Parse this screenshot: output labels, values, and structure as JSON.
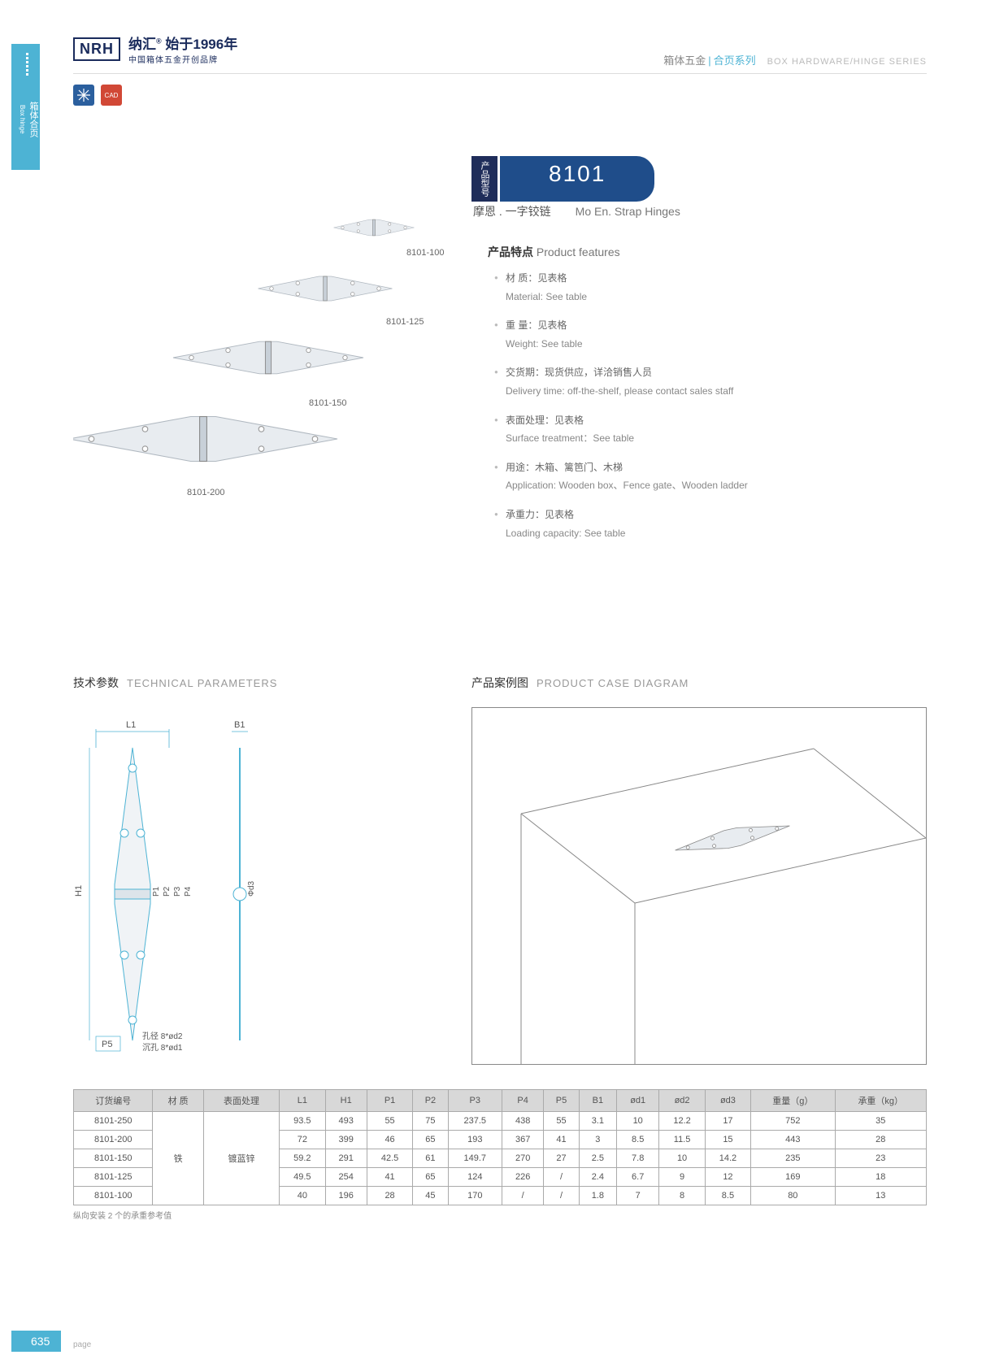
{
  "side_tab": {
    "cn": "箱体合页",
    "en": "Box hinge"
  },
  "logo": {
    "mark": "NRH",
    "cn": "纳汇",
    "reg": "®",
    "since": "始于1996年",
    "tagline": "中国箱体五金开创品牌"
  },
  "header": {
    "cn1": "箱体五金",
    "cn2": "合页系列",
    "en": "BOX HARDWARE/HINGE SERIES"
  },
  "icons": {
    "tool": "✕",
    "cad": "CAD"
  },
  "model": {
    "tag": "产品型号",
    "num": "8101"
  },
  "product_name": {
    "cn": "摩恩 . 一字铰链",
    "en": "Mo En. Strap Hinges"
  },
  "hinge_labels": {
    "h100": "8101-100",
    "h125": "8101-125",
    "h150": "8101-150",
    "h200": "8101-200"
  },
  "features": {
    "title_cn": "产品特点",
    "title_en": "Product features",
    "items": [
      {
        "cn": "材 质：见表格",
        "en": "Material: See table"
      },
      {
        "cn": "重 量：见表格",
        "en": "Weight: See table"
      },
      {
        "cn": "交货期：现货供应，详洽销售人员",
        "en": "Delivery time: off-the-shelf, please contact sales staff"
      },
      {
        "cn": "表面处理：见表格",
        "en": "Surface treatment：See table"
      },
      {
        "cn": "用途：木箱、篱笆门、木梯",
        "en": "Application: Wooden box、Fence gate、Wooden ladder"
      },
      {
        "cn": "承重力：见表格",
        "en": "Loading capacity: See table"
      }
    ]
  },
  "tech": {
    "title_cn": "技术参数",
    "title_en": "TECHNICAL PARAMETERS",
    "dim_labels": {
      "L1": "L1",
      "B1": "B1",
      "H1": "H1",
      "P1": "P1",
      "P2": "P2",
      "P3": "P3",
      "P4": "P4",
      "P5": "P5",
      "d3": "Φd3",
      "hole1": "孔径 8*ød2",
      "hole2": "沉孔 8*ød1"
    }
  },
  "case": {
    "title_cn": "产品案例图",
    "title_en": "PRODUCT CASE DIAGRAM"
  },
  "table": {
    "headers": [
      "订货编号",
      "材 质",
      "表面处理",
      "L1",
      "H1",
      "P1",
      "P2",
      "P3",
      "P4",
      "P5",
      "B1",
      "ød1",
      "ød2",
      "ød3",
      "重量（g）",
      "承重（kg）"
    ],
    "material": "铁",
    "surface": "镀蓝锌",
    "rows": [
      [
        "8101-250",
        "93.5",
        "493",
        "55",
        "75",
        "237.5",
        "438",
        "55",
        "3.1",
        "10",
        "12.2",
        "17",
        "752",
        "35"
      ],
      [
        "8101-200",
        "72",
        "399",
        "46",
        "65",
        "193",
        "367",
        "41",
        "3",
        "8.5",
        "11.5",
        "15",
        "443",
        "28"
      ],
      [
        "8101-150",
        "59.2",
        "291",
        "42.5",
        "61",
        "149.7",
        "270",
        "27",
        "2.5",
        "7.8",
        "10",
        "14.2",
        "235",
        "23"
      ],
      [
        "8101-125",
        "49.5",
        "254",
        "41",
        "65",
        "124",
        "226",
        "/",
        "2.4",
        "6.7",
        "9",
        "12",
        "169",
        "18"
      ],
      [
        "8101-100",
        "40",
        "196",
        "28",
        "45",
        "170",
        "/",
        "/",
        "1.8",
        "7",
        "8",
        "8.5",
        "80",
        "13"
      ]
    ],
    "note": "纵向安装 2 个的承重参考值"
  },
  "page": {
    "num": "635",
    "label": "page"
  },
  "colors": {
    "accent": "#4db3d4",
    "navy": "#1f2d5a",
    "blue": "#1f4d8a"
  }
}
